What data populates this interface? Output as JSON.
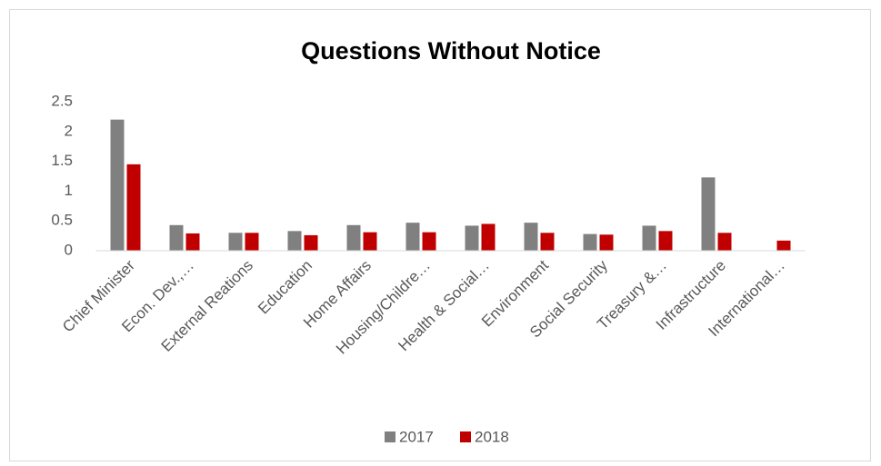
{
  "chart_data": {
    "type": "bar",
    "title": "Questions Without Notice",
    "categories": [
      "Chief Minister",
      "Econ. Dev.,…",
      "External Reations",
      "Education",
      "Home Affairs",
      "Housing/Childre…",
      "Health & Social…",
      "Environment",
      "Social Security",
      "Treasury &…",
      "Infrastructure",
      "International…"
    ],
    "series": [
      {
        "name": "2017",
        "color": "#808080",
        "values": [
          2.2,
          0.43,
          0.3,
          0.33,
          0.43,
          0.47,
          0.42,
          0.47,
          0.28,
          0.42,
          1.23,
          null
        ]
      },
      {
        "name": "2018",
        "color": "#c00000",
        "values": [
          1.45,
          0.29,
          0.3,
          0.26,
          0.31,
          0.31,
          0.45,
          0.3,
          0.27,
          0.33,
          0.3,
          0.17
        ]
      }
    ],
    "ylim": [
      0,
      2.5
    ],
    "yticks": [
      0,
      0.5,
      1,
      1.5,
      2,
      2.5
    ],
    "grid": false,
    "legend": "bottom"
  }
}
